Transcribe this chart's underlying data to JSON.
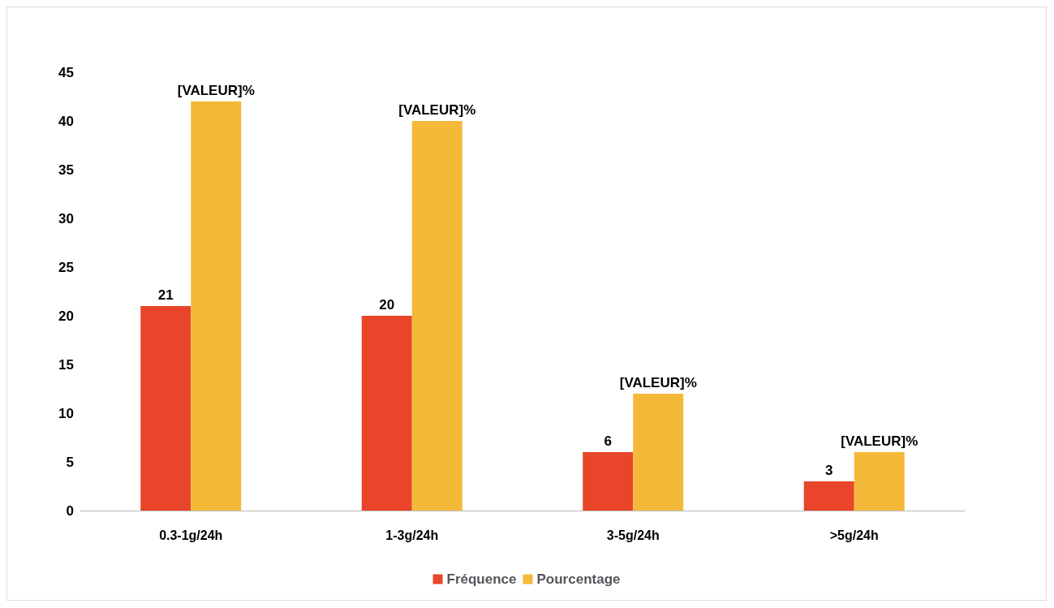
{
  "chart_data": {
    "type": "bar",
    "categories": [
      "0.3-1g/24h",
      "1-3g/24h",
      "3-5g/24h",
      ">5g/24h"
    ],
    "series": [
      {
        "name": "Fréquence",
        "color": "#e8452a",
        "values": [
          21,
          20,
          6,
          3
        ],
        "value_labels": [
          "21",
          "20",
          "6",
          "3"
        ]
      },
      {
        "name": "Pourcentage",
        "color": "#f5b93a",
        "values": [
          42,
          40,
          12,
          6
        ],
        "value_labels": [
          "[VALEUR]%",
          "[VALEUR]%",
          "[VALEUR]%",
          "[VALEUR]%"
        ]
      }
    ],
    "ylim": [
      0,
      45
    ],
    "yticks": [
      0,
      5,
      10,
      15,
      20,
      25,
      30,
      35,
      40,
      45
    ],
    "grid": false,
    "legend": "bottom"
  }
}
